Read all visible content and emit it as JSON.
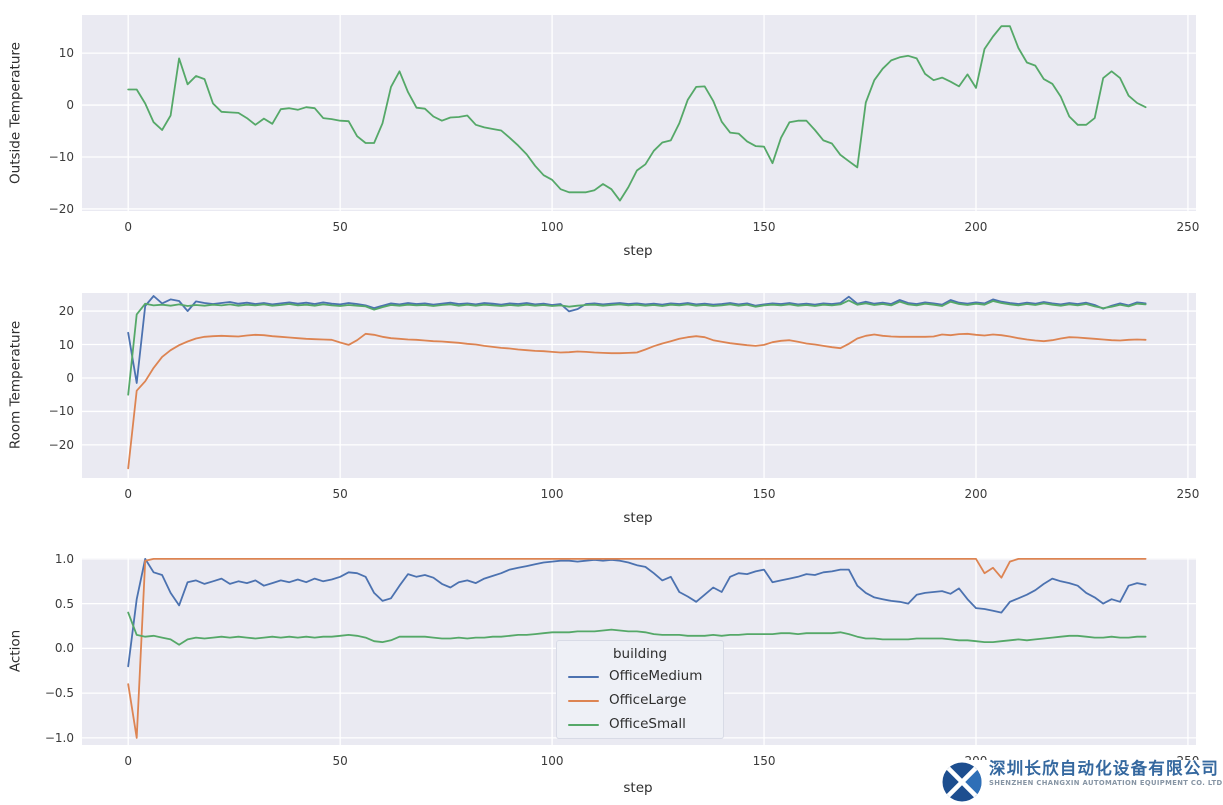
{
  "figure": {
    "background": "#ffffff",
    "plot_background": "#eaeaf2",
    "grid_color": "#ffffff",
    "tick_color": "#3b3b3b",
    "label_color": "#2e2e2e"
  },
  "logo": {
    "icon": "interlocked-x-circle-mark",
    "company_zh": "深圳长欣自动化设备有限公司",
    "company_en": "SHENZHEN CHANGXIN AUTOMATION EQUIPMENT CO. LTD",
    "zh_color": "#35689f",
    "en_color": "#8795a4",
    "icon_dark": "#1d4e8f",
    "icon_light": "#2e6fb7"
  },
  "chart_data": [
    {
      "type": "line",
      "ylabel": "Outside Temperature",
      "xlabel": "step",
      "xlim": [
        -10.9,
        251.9
      ],
      "ylim": [
        -20.4,
        17.35
      ],
      "grid": true,
      "xticks": [
        {
          "v": 0,
          "label": "0"
        },
        {
          "v": 50,
          "label": "50"
        },
        {
          "v": 100,
          "label": "100"
        },
        {
          "v": 150,
          "label": "150"
        },
        {
          "v": 200,
          "label": "200"
        },
        {
          "v": 250,
          "label": "250"
        }
      ],
      "yticks": [
        {
          "v": 10,
          "label": "10"
        },
        {
          "v": 0,
          "label": "0"
        },
        {
          "v": -10,
          "label": "−10"
        },
        {
          "v": -20,
          "label": "−20"
        }
      ],
      "x_start": 0,
      "x_step": 2,
      "series": [
        {
          "name": "OutsideTemperature",
          "color": "#55A868",
          "values": [
            3,
            3,
            0.3,
            -3.3,
            -4.8,
            -2,
            9,
            4,
            5.6,
            5,
            0.3,
            -1.3,
            -1.4,
            -1.5,
            -2.5,
            -3.8,
            -2.6,
            -3.6,
            -0.8,
            -0.6,
            -0.9,
            -0.4,
            -0.6,
            -2.5,
            -2.7,
            -3,
            -3.1,
            -6,
            -7.3,
            -7.3,
            -3.5,
            3.5,
            6.5,
            2.5,
            -0.5,
            -0.7,
            -2.2,
            -3,
            -2.4,
            -2.3,
            -2,
            -3.8,
            -4.3,
            -4.6,
            -4.9,
            -6.3,
            -7.8,
            -9.5,
            -11.7,
            -13.5,
            -14.4,
            -16.2,
            -16.8,
            -16.8,
            -16.8,
            -16.4,
            -15.2,
            -16.2,
            -18.4,
            -15.8,
            -12.6,
            -11.4,
            -8.8,
            -7.2,
            -6.8,
            -3.5,
            1,
            3.5,
            3.6,
            0.8,
            -3.2,
            -5.3,
            -5.5,
            -7,
            -7.9,
            -8,
            -11.2,
            -6.3,
            -3.3,
            -3,
            -3,
            -4.8,
            -6.8,
            -7.4,
            -9.6,
            -10.8,
            -12,
            0.5,
            4.8,
            7,
            8.6,
            9.2,
            9.5,
            9,
            6,
            4.8,
            5.3,
            4.5,
            3.6,
            5.9,
            3.3,
            10.8,
            13.2,
            15.2,
            15.2,
            11,
            8.2,
            7.6,
            5,
            4.1,
            1.6,
            -2.2,
            -3.8,
            -3.8,
            -2.5,
            5.2,
            6.5,
            5.2,
            1.8,
            0.4,
            -0.4
          ]
        }
      ]
    },
    {
      "type": "line",
      "ylabel": "Room Temperature",
      "xlabel": "step",
      "xlim": [
        -10.9,
        251.9
      ],
      "ylim": [
        -29.9,
        25.4
      ],
      "grid": true,
      "xticks": [
        {
          "v": 0,
          "label": "0"
        },
        {
          "v": 50,
          "label": "50"
        },
        {
          "v": 100,
          "label": "100"
        },
        {
          "v": 150,
          "label": "150"
        },
        {
          "v": 200,
          "label": "200"
        },
        {
          "v": 250,
          "label": "250"
        }
      ],
      "yticks": [
        {
          "v": 20,
          "label": "20"
        },
        {
          "v": 10,
          "label": "10"
        },
        {
          "v": 0,
          "label": "0"
        },
        {
          "v": -10,
          "label": "−10"
        },
        {
          "v": -20,
          "label": "−20"
        }
      ],
      "x_start": 0,
      "x_step": 2,
      "series": [
        {
          "name": "OfficeMedium",
          "color": "#4C72B0",
          "values": [
            13.5,
            -1.5,
            21.5,
            24.5,
            22.3,
            23.5,
            23,
            20,
            22.9,
            22.4,
            22.1,
            22.4,
            22.7,
            22.2,
            22.5,
            22.1,
            22.4,
            22,
            22.3,
            22.6,
            22.2,
            22.5,
            22.1,
            22.6,
            22.2,
            22,
            22.4,
            22.1,
            21.7,
            20.9,
            21.6,
            22.3,
            22,
            22.4,
            22.1,
            22.3,
            21.9,
            22.2,
            22.5,
            22.1,
            22.3,
            22,
            22.4,
            22.2,
            21.9,
            22.3,
            22.1,
            22.4,
            22,
            22.2,
            21.8,
            22.1,
            19.9,
            20.6,
            22.1,
            22.3,
            22,
            22.2,
            22.4,
            22.1,
            22.3,
            22,
            22.2,
            21.9,
            22.3,
            22.1,
            22.4,
            22,
            22.2,
            21.9,
            22.1,
            22.4,
            22,
            22.3,
            21.6,
            22,
            22.3,
            22.1,
            22.4,
            22,
            22.2,
            21.9,
            22.3,
            22.1,
            22.4,
            24.3,
            22.2,
            22.8,
            22.2,
            22.5,
            22.1,
            23.3,
            22.4,
            22.1,
            22.6,
            22.3,
            21.9,
            23.3,
            22.5,
            22.2,
            22.6,
            22.3,
            23.5,
            22.8,
            22.4,
            22.1,
            22.5,
            22.2,
            22.7,
            22.3,
            22,
            22.4,
            22.1,
            22.5,
            21.8,
            20.7,
            21.6,
            22.3,
            21.7,
            22.6,
            22.3
          ]
        },
        {
          "name": "OfficeLarge",
          "color": "#DD8452",
          "values": [
            -27,
            -3.8,
            -1,
            3,
            6.3,
            8.3,
            9.8,
            10.9,
            11.8,
            12.3,
            12.5,
            12.6,
            12.5,
            12.4,
            12.7,
            12.9,
            12.8,
            12.5,
            12.3,
            12.1,
            11.9,
            11.7,
            11.6,
            11.5,
            11.4,
            10.6,
            9.9,
            11.3,
            13.2,
            12.9,
            12.3,
            11.9,
            11.7,
            11.5,
            11.4,
            11.2,
            11,
            10.9,
            10.7,
            10.5,
            10.2,
            10,
            9.6,
            9.3,
            9,
            8.8,
            8.5,
            8.3,
            8.1,
            8,
            7.8,
            7.6,
            7.7,
            7.9,
            7.8,
            7.6,
            7.5,
            7.4,
            7.4,
            7.5,
            7.6,
            8.5,
            9.5,
            10.3,
            11,
            11.7,
            12.2,
            12.5,
            12.2,
            11.3,
            10.8,
            10.4,
            10.1,
            9.8,
            9.6,
            9.9,
            10.7,
            11.1,
            11.3,
            10.8,
            10.3,
            10,
            9.6,
            9.2,
            8.9,
            10.2,
            11.8,
            12.6,
            13,
            12.6,
            12.4,
            12.3,
            12.3,
            12.3,
            12.3,
            12.4,
            13,
            12.8,
            13.1,
            13.2,
            12.9,
            12.7,
            13,
            12.8,
            12.4,
            11.9,
            11.5,
            11.2,
            11,
            11.3,
            11.8,
            12.2,
            12.1,
            11.9,
            11.7,
            11.5,
            11.3,
            11.2,
            11.4,
            11.5,
            11.4
          ]
        },
        {
          "name": "OfficeSmall",
          "color": "#55A868",
          "values": [
            -5,
            19,
            22.2,
            21.7,
            21.9,
            21.6,
            22,
            21.5,
            21.8,
            21.6,
            21.9,
            21.7,
            22,
            21.6,
            21.9,
            21.7,
            22,
            21.6,
            21.8,
            22.1,
            21.7,
            21.9,
            21.6,
            22,
            21.7,
            21.5,
            21.8,
            21.6,
            21.4,
            20.4,
            21.2,
            21.8,
            21.6,
            21.9,
            21.7,
            21.8,
            21.5,
            21.8,
            22,
            21.6,
            21.9,
            21.6,
            21.9,
            21.7,
            21.5,
            21.8,
            21.6,
            21.9,
            21.6,
            21.8,
            21.5,
            21.7,
            21.3,
            21.6,
            21.8,
            21.9,
            21.6,
            21.8,
            22,
            21.7,
            21.9,
            21.6,
            21.8,
            21.5,
            21.9,
            21.7,
            22,
            21.6,
            21.8,
            21.5,
            21.7,
            22,
            21.6,
            21.9,
            21.3,
            21.7,
            21.9,
            21.7,
            22,
            21.6,
            21.8,
            21.5,
            21.9,
            21.7,
            22,
            23.2,
            21.9,
            22.3,
            21.8,
            22.1,
            21.7,
            22.8,
            22,
            21.7,
            22.2,
            21.9,
            21.5,
            22.8,
            22.1,
            21.8,
            22.2,
            21.9,
            23,
            22.4,
            22,
            21.7,
            22.1,
            21.8,
            22.3,
            21.9,
            21.6,
            22,
            21.7,
            22.1,
            21.4,
            20.9,
            21.3,
            21.9,
            21.4,
            22.2,
            22
          ]
        }
      ]
    },
    {
      "type": "line",
      "ylabel": "Action",
      "xlabel": "step",
      "xlim": [
        -10.9,
        251.9
      ],
      "ylim": [
        -1.08,
        1.01
      ],
      "grid": true,
      "legend": {
        "title": "building",
        "position": "lower center"
      },
      "xticks": [
        {
          "v": 0,
          "label": "0"
        },
        {
          "v": 50,
          "label": "50"
        },
        {
          "v": 100,
          "label": "100"
        },
        {
          "v": 150,
          "label": "150"
        },
        {
          "v": 200,
          "label": "200"
        },
        {
          "v": 250,
          "label": "250"
        }
      ],
      "yticks": [
        {
          "v": 1.0,
          "label": "1.0"
        },
        {
          "v": 0.5,
          "label": "0.5"
        },
        {
          "v": 0.0,
          "label": "0.0"
        },
        {
          "v": -0.5,
          "label": "−0.5"
        },
        {
          "v": -1.0,
          "label": "−1.0"
        }
      ],
      "x_start": 0,
      "x_step": 2,
      "series": [
        {
          "name": "OfficeMedium",
          "color": "#4C72B0",
          "values": [
            -0.2,
            0.55,
            1,
            0.85,
            0.82,
            0.62,
            0.48,
            0.74,
            0.76,
            0.72,
            0.75,
            0.78,
            0.72,
            0.75,
            0.73,
            0.76,
            0.7,
            0.73,
            0.76,
            0.74,
            0.77,
            0.74,
            0.78,
            0.75,
            0.77,
            0.8,
            0.85,
            0.84,
            0.8,
            0.62,
            0.53,
            0.56,
            0.7,
            0.83,
            0.8,
            0.82,
            0.79,
            0.72,
            0.68,
            0.74,
            0.76,
            0.73,
            0.78,
            0.81,
            0.84,
            0.88,
            0.9,
            0.92,
            0.94,
            0.96,
            0.97,
            0.98,
            0.98,
            0.97,
            0.98,
            0.99,
            0.98,
            0.99,
            0.98,
            0.96,
            0.93,
            0.91,
            0.84,
            0.76,
            0.8,
            0.63,
            0.58,
            0.52,
            0.6,
            0.68,
            0.63,
            0.8,
            0.84,
            0.83,
            0.86,
            0.88,
            0.74,
            0.76,
            0.78,
            0.8,
            0.83,
            0.82,
            0.85,
            0.86,
            0.88,
            0.88,
            0.7,
            0.62,
            0.57,
            0.55,
            0.53,
            0.52,
            0.5,
            0.6,
            0.62,
            0.63,
            0.64,
            0.61,
            0.67,
            0.55,
            0.45,
            0.44,
            0.42,
            0.4,
            0.52,
            0.56,
            0.6,
            0.65,
            0.72,
            0.78,
            0.75,
            0.73,
            0.7,
            0.62,
            0.57,
            0.5,
            0.55,
            0.52,
            0.7,
            0.73,
            0.71
          ]
        },
        {
          "name": "OfficeLarge",
          "color": "#DD8452",
          "values": [
            -0.4,
            -1,
            0.98,
            1,
            1,
            1,
            1,
            1,
            1,
            1,
            1,
            1,
            1,
            1,
            1,
            1,
            1,
            1,
            1,
            1,
            1,
            1,
            1,
            1,
            1,
            1,
            1,
            1,
            1,
            1,
            1,
            1,
            1,
            1,
            1,
            1,
            1,
            1,
            1,
            1,
            1,
            1,
            1,
            1,
            1,
            1,
            1,
            1,
            1,
            1,
            1,
            1,
            1,
            1,
            1,
            1,
            1,
            1,
            1,
            1,
            1,
            1,
            1,
            1,
            1,
            1,
            1,
            1,
            1,
            1,
            1,
            1,
            1,
            1,
            1,
            1,
            1,
            1,
            1,
            1,
            1,
            1,
            1,
            1,
            1,
            1,
            1,
            1,
            1,
            1,
            1,
            1,
            1,
            1,
            1,
            1,
            1,
            1,
            1,
            1,
            1,
            0.84,
            0.9,
            0.79,
            0.97,
            1,
            1,
            1,
            1,
            1,
            1,
            1,
            1,
            1,
            1,
            1,
            1,
            1,
            1,
            1,
            1
          ]
        },
        {
          "name": "OfficeSmall",
          "color": "#55A868",
          "values": [
            0.4,
            0.15,
            0.13,
            0.14,
            0.12,
            0.1,
            0.04,
            0.1,
            0.12,
            0.11,
            0.12,
            0.13,
            0.12,
            0.13,
            0.12,
            0.11,
            0.12,
            0.13,
            0.12,
            0.13,
            0.12,
            0.13,
            0.12,
            0.13,
            0.13,
            0.14,
            0.15,
            0.14,
            0.12,
            0.08,
            0.07,
            0.09,
            0.13,
            0.13,
            0.13,
            0.13,
            0.12,
            0.11,
            0.11,
            0.12,
            0.11,
            0.12,
            0.12,
            0.13,
            0.13,
            0.14,
            0.15,
            0.15,
            0.16,
            0.17,
            0.18,
            0.18,
            0.18,
            0.19,
            0.19,
            0.19,
            0.2,
            0.21,
            0.2,
            0.19,
            0.19,
            0.18,
            0.16,
            0.15,
            0.15,
            0.15,
            0.14,
            0.14,
            0.14,
            0.15,
            0.14,
            0.15,
            0.15,
            0.16,
            0.16,
            0.16,
            0.16,
            0.17,
            0.17,
            0.16,
            0.17,
            0.17,
            0.17,
            0.17,
            0.18,
            0.16,
            0.13,
            0.11,
            0.11,
            0.1,
            0.1,
            0.1,
            0.1,
            0.11,
            0.11,
            0.11,
            0.11,
            0.1,
            0.09,
            0.09,
            0.08,
            0.07,
            0.07,
            0.08,
            0.09,
            0.1,
            0.09,
            0.1,
            0.11,
            0.12,
            0.13,
            0.14,
            0.14,
            0.13,
            0.12,
            0.12,
            0.13,
            0.12,
            0.12,
            0.13,
            0.13
          ]
        }
      ]
    }
  ]
}
